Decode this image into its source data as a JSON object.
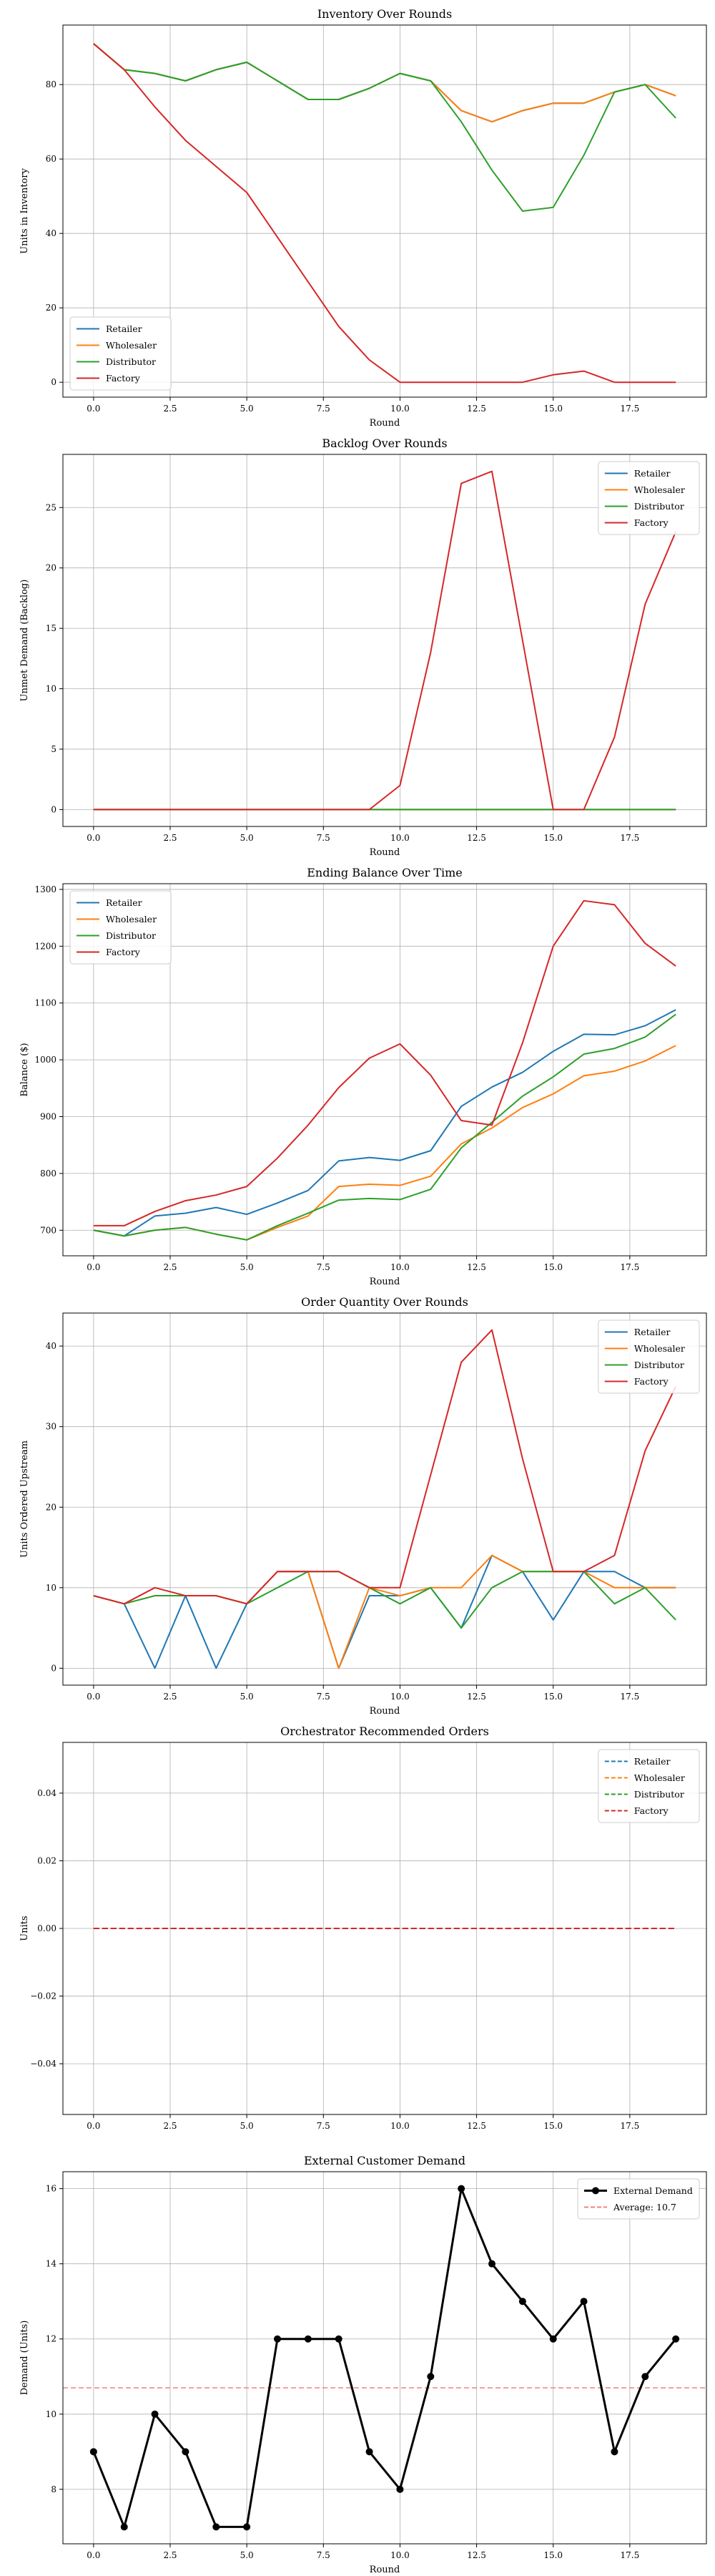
{
  "chart_data": [
    {
      "type": "line",
      "title": "Inventory Over Rounds",
      "xlabel": "Round",
      "ylabel": "Units in Inventory",
      "x": [
        0,
        1,
        2,
        3,
        4,
        5,
        6,
        7,
        8,
        9,
        10,
        11,
        12,
        13,
        14,
        15,
        16,
        17,
        18,
        19
      ],
      "xlim": [
        -1,
        20
      ],
      "ylim": [
        -4,
        96
      ],
      "xticks": [
        0.0,
        2.5,
        5.0,
        7.5,
        10.0,
        12.5,
        15.0,
        17.5
      ],
      "xtick_labels": [
        "0.0",
        "2.5",
        "5.0",
        "7.5",
        "10.0",
        "12.5",
        "15.0",
        "17.5"
      ],
      "yticks": [
        0,
        20,
        40,
        60,
        80
      ],
      "ytick_labels": [
        "0",
        "20",
        "40",
        "60",
        "80"
      ],
      "grid": true,
      "legend_position": "lower-left",
      "series": [
        {
          "name": "Retailer",
          "color": "#1f77b4",
          "values": [
            91,
            84,
            83,
            81,
            84,
            86,
            81,
            76,
            76,
            79,
            83,
            81,
            73,
            70,
            73,
            75,
            75,
            78,
            80,
            77
          ]
        },
        {
          "name": "Wholesaler",
          "color": "#ff7f0e",
          "values": [
            91,
            84,
            83,
            81,
            84,
            86,
            81,
            76,
            76,
            79,
            83,
            81,
            73,
            70,
            73,
            75,
            75,
            78,
            80,
            77
          ]
        },
        {
          "name": "Distributor",
          "color": "#2ca02c",
          "values": [
            91,
            84,
            83,
            81,
            84,
            86,
            81,
            76,
            76,
            79,
            83,
            81,
            70,
            57,
            46,
            47,
            61,
            78,
            80,
            71
          ]
        },
        {
          "name": "Factory",
          "color": "#d62728",
          "values": [
            91,
            84,
            74,
            65,
            58,
            51,
            39,
            27,
            15,
            6,
            0,
            0,
            0,
            0,
            0,
            2,
            3,
            0,
            0,
            0
          ]
        }
      ]
    },
    {
      "type": "line",
      "title": "Backlog Over Rounds",
      "xlabel": "Round",
      "ylabel": "Unmet Demand (Backlog)",
      "x": [
        0,
        1,
        2,
        3,
        4,
        5,
        6,
        7,
        8,
        9,
        10,
        11,
        12,
        13,
        14,
        15,
        16,
        17,
        18,
        19
      ],
      "xlim": [
        -1,
        20
      ],
      "ylim": [
        -1.4,
        29.4
      ],
      "xticks": [
        0.0,
        2.5,
        5.0,
        7.5,
        10.0,
        12.5,
        15.0,
        17.5
      ],
      "xtick_labels": [
        "0.0",
        "2.5",
        "5.0",
        "7.5",
        "10.0",
        "12.5",
        "15.0",
        "17.5"
      ],
      "yticks": [
        0,
        5,
        10,
        15,
        20,
        25
      ],
      "ytick_labels": [
        "0",
        "5",
        "10",
        "15",
        "20",
        "25"
      ],
      "grid": true,
      "legend_position": "top-right",
      "series": [
        {
          "name": "Retailer",
          "color": "#1f77b4",
          "values": [
            0,
            0,
            0,
            0,
            0,
            0,
            0,
            0,
            0,
            0,
            0,
            0,
            0,
            0,
            0,
            0,
            0,
            0,
            0,
            0
          ]
        },
        {
          "name": "Wholesaler",
          "color": "#ff7f0e",
          "values": [
            0,
            0,
            0,
            0,
            0,
            0,
            0,
            0,
            0,
            0,
            0,
            0,
            0,
            0,
            0,
            0,
            0,
            0,
            0,
            0
          ]
        },
        {
          "name": "Distributor",
          "color": "#2ca02c",
          "values": [
            0,
            0,
            0,
            0,
            0,
            0,
            0,
            0,
            0,
            0,
            0,
            0,
            0,
            0,
            0,
            0,
            0,
            0,
            0,
            0
          ]
        },
        {
          "name": "Factory",
          "color": "#d62728",
          "values": [
            0,
            0,
            0,
            0,
            0,
            0,
            0,
            0,
            0,
            0,
            2,
            13,
            27,
            28,
            14,
            0,
            0,
            6,
            17,
            23
          ]
        }
      ]
    },
    {
      "type": "line",
      "title": "Ending Balance Over Time",
      "xlabel": "Round",
      "ylabel": "Balance ($)",
      "x": [
        0,
        1,
        2,
        3,
        4,
        5,
        6,
        7,
        8,
        9,
        10,
        11,
        12,
        13,
        14,
        15,
        16,
        17,
        18,
        19
      ],
      "xlim": [
        -1,
        20
      ],
      "ylim": [
        655,
        1310
      ],
      "xticks": [
        0.0,
        2.5,
        5.0,
        7.5,
        10.0,
        12.5,
        15.0,
        17.5
      ],
      "xtick_labels": [
        "0.0",
        "2.5",
        "5.0",
        "7.5",
        "10.0",
        "12.5",
        "15.0",
        "17.5"
      ],
      "yticks": [
        700,
        800,
        900,
        1000,
        1100,
        1200,
        1300
      ],
      "ytick_labels": [
        "700",
        "800",
        "900",
        "1000",
        "1100",
        "1200",
        "1300"
      ],
      "grid": true,
      "legend_position": "top-left",
      "series": [
        {
          "name": "Retailer",
          "color": "#1f77b4",
          "values": [
            700,
            690,
            725,
            730,
            740,
            728,
            748,
            770,
            822,
            828,
            823,
            840,
            918,
            952,
            978,
            1015,
            1045,
            1044,
            1060,
            1088
          ]
        },
        {
          "name": "Wholesaler",
          "color": "#ff7f0e",
          "values": [
            700,
            690,
            700,
            705,
            693,
            683,
            705,
            725,
            777,
            781,
            779,
            795,
            852,
            880,
            916,
            940,
            972,
            980,
            998,
            1025
          ]
        },
        {
          "name": "Distributor",
          "color": "#2ca02c",
          "values": [
            700,
            690,
            700,
            705,
            693,
            683,
            708,
            730,
            753,
            756,
            754,
            772,
            845,
            890,
            936,
            970,
            1010,
            1020,
            1040,
            1080
          ]
        },
        {
          "name": "Factory",
          "color": "#d62728",
          "values": [
            708,
            708,
            733,
            752,
            762,
            777,
            827,
            885,
            951,
            1003,
            1028,
            973,
            893,
            885,
            1030,
            1200,
            1280,
            1273,
            1205,
            1165
          ]
        }
      ]
    },
    {
      "type": "line",
      "title": "Order Quantity Over Rounds",
      "xlabel": "Round",
      "ylabel": "Units Ordered Upstream",
      "x": [
        0,
        1,
        2,
        3,
        4,
        5,
        6,
        7,
        8,
        9,
        10,
        11,
        12,
        13,
        14,
        15,
        16,
        17,
        18,
        19
      ],
      "xlim": [
        -1,
        20
      ],
      "ylim": [
        -2.1,
        44.1
      ],
      "xticks": [
        0.0,
        2.5,
        5.0,
        7.5,
        10.0,
        12.5,
        15.0,
        17.5
      ],
      "xtick_labels": [
        "0.0",
        "2.5",
        "5.0",
        "7.5",
        "10.0",
        "12.5",
        "15.0",
        "17.5"
      ],
      "yticks": [
        0,
        10,
        20,
        30,
        40
      ],
      "ytick_labels": [
        "0",
        "10",
        "20",
        "30",
        "40"
      ],
      "grid": true,
      "legend_position": "top-right",
      "series": [
        {
          "name": "Retailer",
          "color": "#1f77b4",
          "values": [
            9,
            8,
            0,
            9,
            0,
            8,
            12,
            12,
            0,
            9,
            9,
            10,
            5,
            14,
            12,
            6,
            12,
            12,
            10,
            10
          ]
        },
        {
          "name": "Wholesaler",
          "color": "#ff7f0e",
          "values": [
            9,
            8,
            9,
            9,
            9,
            8,
            12,
            12,
            0,
            10,
            9,
            10,
            10,
            14,
            12,
            12,
            12,
            10,
            10,
            10
          ]
        },
        {
          "name": "Distributor",
          "color": "#2ca02c",
          "values": [
            9,
            8,
            9,
            9,
            9,
            8,
            10,
            12,
            12,
            10,
            8,
            10,
            5,
            10,
            12,
            12,
            12,
            8,
            10,
            6
          ]
        },
        {
          "name": "Factory",
          "color": "#d62728",
          "values": [
            9,
            8,
            10,
            9,
            9,
            8,
            12,
            12,
            12,
            10,
            10,
            24,
            38,
            42,
            26,
            12,
            12,
            14,
            27,
            35
          ]
        }
      ]
    },
    {
      "type": "line",
      "title": "Orchestrator Recommended Orders",
      "xlabel": "",
      "ylabel": "Units",
      "x": [
        0,
        1,
        2,
        3,
        4,
        5,
        6,
        7,
        8,
        9,
        10,
        11,
        12,
        13,
        14,
        15,
        16,
        17,
        18,
        19
      ],
      "xlim": [
        -1,
        20
      ],
      "ylim": [
        -0.055,
        0.055
      ],
      "xticks": [
        0.0,
        2.5,
        5.0,
        7.5,
        10.0,
        12.5,
        15.0,
        17.5
      ],
      "xtick_labels": [
        "0.0",
        "2.5",
        "5.0",
        "7.5",
        "10.0",
        "12.5",
        "15.0",
        "17.5"
      ],
      "yticks": [
        -0.04,
        -0.02,
        0.0,
        0.02,
        0.04
      ],
      "ytick_labels": [
        "−0.04",
        "−0.02",
        "0.00",
        "0.02",
        "0.04"
      ],
      "grid": true,
      "legend_position": "top-right",
      "series": [
        {
          "name": "Retailer",
          "color": "#1f77b4",
          "dashed": true,
          "values": [
            0,
            0,
            0,
            0,
            0,
            0,
            0,
            0,
            0,
            0,
            0,
            0,
            0,
            0,
            0,
            0,
            0,
            0,
            0,
            0
          ]
        },
        {
          "name": "Wholesaler",
          "color": "#ff7f0e",
          "dashed": true,
          "values": [
            0,
            0,
            0,
            0,
            0,
            0,
            0,
            0,
            0,
            0,
            0,
            0,
            0,
            0,
            0,
            0,
            0,
            0,
            0,
            0
          ]
        },
        {
          "name": "Distributor",
          "color": "#2ca02c",
          "dashed": true,
          "values": [
            0,
            0,
            0,
            0,
            0,
            0,
            0,
            0,
            0,
            0,
            0,
            0,
            0,
            0,
            0,
            0,
            0,
            0,
            0,
            0
          ]
        },
        {
          "name": "Factory",
          "color": "#d62728",
          "dashed": true,
          "values": [
            0,
            0,
            0,
            0,
            0,
            0,
            0,
            0,
            0,
            0,
            0,
            0,
            0,
            0,
            0,
            0,
            0,
            0,
            0,
            0
          ]
        }
      ]
    },
    {
      "type": "line",
      "title": "External Customer Demand",
      "xlabel": "Round",
      "ylabel": "Demand (Units)",
      "x": [
        0,
        1,
        2,
        3,
        4,
        5,
        6,
        7,
        8,
        9,
        10,
        11,
        12,
        13,
        14,
        15,
        16,
        17,
        18,
        19
      ],
      "xlim": [
        -1,
        20
      ],
      "ylim": [
        6.55,
        16.45
      ],
      "xticks": [
        0.0,
        2.5,
        5.0,
        7.5,
        10.0,
        12.5,
        15.0,
        17.5
      ],
      "xtick_labels": [
        "0.0",
        "2.5",
        "5.0",
        "7.5",
        "10.0",
        "12.5",
        "15.0",
        "17.5"
      ],
      "yticks": [
        8,
        10,
        12,
        14,
        16
      ],
      "ytick_labels": [
        "8",
        "10",
        "12",
        "14",
        "16"
      ],
      "grid": true,
      "legend_position": "top-right",
      "series": [
        {
          "name": "External Demand",
          "color": "#000000",
          "markers": true,
          "values": [
            9,
            7,
            10,
            9,
            7,
            7,
            12,
            12,
            12,
            9,
            8,
            11,
            16,
            14,
            13,
            12,
            13,
            9,
            11,
            12
          ]
        }
      ],
      "reference_line": {
        "name": "Average: 10.7",
        "value": 10.7,
        "color": "#f08080",
        "dashed": true
      }
    }
  ]
}
